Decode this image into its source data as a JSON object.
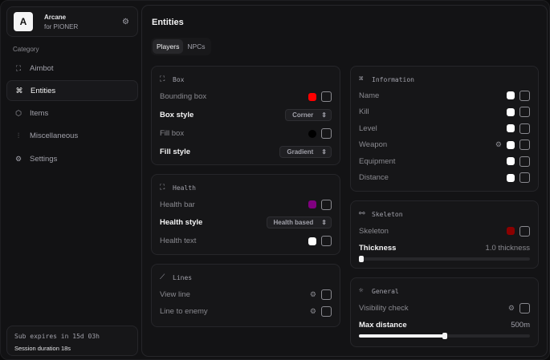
{
  "app": {
    "logo_letter": "A",
    "title": "Arcane",
    "subtitle": "for PIONER"
  },
  "sidebar": {
    "category_label": "Category",
    "items": [
      {
        "label": "Aimbot",
        "icon": "crosshair-icon"
      },
      {
        "label": "Entities",
        "icon": "scan-face-icon",
        "active": true
      },
      {
        "label": "Items",
        "icon": "box-icon"
      },
      {
        "label": "Miscellaneous",
        "icon": "sliders-icon"
      },
      {
        "label": "Settings",
        "icon": "gear-icon"
      }
    ]
  },
  "footer": {
    "subscription": "Sub expires in 15d 03h",
    "session": "Session duration 18s"
  },
  "main": {
    "title": "Entities",
    "tabs": [
      {
        "label": "Players",
        "active": true
      },
      {
        "label": "NPCs"
      }
    ]
  },
  "box": {
    "title": "Box",
    "bounding_box": "Bounding box",
    "bounding_box_color": "#ff0000",
    "box_style_label": "Box style",
    "box_style_value": "Corner",
    "fill_box": "Fill box",
    "fill_box_color": "#000000",
    "fill_style_label": "Fill style",
    "fill_style_value": "Gradient"
  },
  "health": {
    "title": "Health",
    "health_bar": "Health bar",
    "health_bar_color": "#800080",
    "health_style_label": "Health style",
    "health_style_value": "Health based",
    "health_text": "Health text",
    "health_text_color": "#ffffff"
  },
  "lines": {
    "title": "Lines",
    "view_line": "View line",
    "line_to_enemy": "Line to enemy"
  },
  "information": {
    "title": "Information",
    "items": [
      {
        "label": "Name",
        "color": "#ffffff"
      },
      {
        "label": "Kill",
        "color": "#ffffff"
      },
      {
        "label": "Level",
        "color": "#ffffff"
      },
      {
        "label": "Weapon",
        "color": "#ffffff",
        "has_settings": true
      },
      {
        "label": "Equipment",
        "color": "#ffffff"
      },
      {
        "label": "Distance",
        "color": "#ffffff"
      }
    ]
  },
  "skeleton": {
    "title": "Skeleton",
    "skeleton_label": "Skeleton",
    "skeleton_color": "#8b0000",
    "thickness_label": "Thickness",
    "thickness_value": "1.0 thickness",
    "thickness_fraction": 0
  },
  "general": {
    "title": "General",
    "visibility_check": "Visibility check",
    "max_distance_label": "Max distance",
    "max_distance_value": "500m",
    "max_distance_fraction": 0.5
  }
}
